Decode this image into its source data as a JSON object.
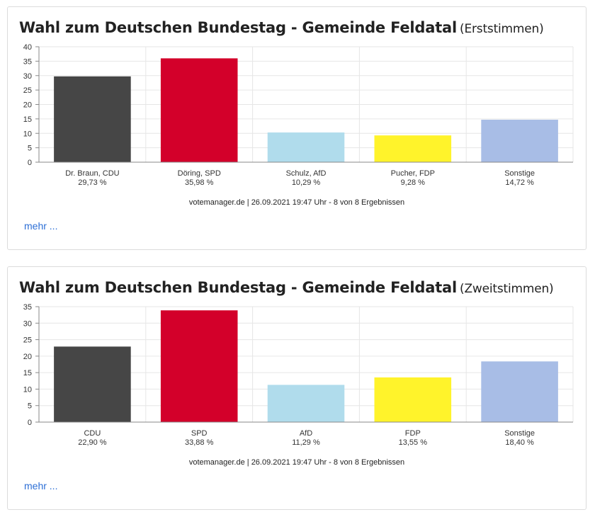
{
  "chart_data": [
    {
      "type": "bar",
      "title": "Wahl zum Deutschen Bundestag - Gemeinde Feldatal",
      "subtitle": "(Erststimmen)",
      "categories": [
        "Dr. Braun, CDU",
        "Döring, SPD",
        "Schulz, AfD",
        "Pucher, FDP",
        "Sonstige"
      ],
      "value_labels": [
        "29,73 %",
        "35,98 %",
        "10,29 %",
        "9,28 %",
        "14,72 %"
      ],
      "values": [
        29.73,
        35.98,
        10.29,
        9.28,
        14.72
      ],
      "colors": [
        "#464646",
        "#d3002a",
        "#b0dcec",
        "#fff32b",
        "#a8bde6"
      ],
      "ylim": [
        0,
        40
      ],
      "yticks": [
        0,
        5,
        10,
        15,
        20,
        25,
        30,
        35,
        40
      ],
      "grid": true,
      "footer": "votemanager.de | 26.09.2021 19:47 Uhr - 8 von 8 Ergebnissen",
      "more_link": "mehr ..."
    },
    {
      "type": "bar",
      "title": "Wahl zum Deutschen Bundestag - Gemeinde Feldatal",
      "subtitle": "(Zweitstimmen)",
      "categories": [
        "CDU",
        "SPD",
        "AfD",
        "FDP",
        "Sonstige"
      ],
      "value_labels": [
        "22,90 %",
        "33,88 %",
        "11,29 %",
        "13,55 %",
        "18,40 %"
      ],
      "values": [
        22.9,
        33.88,
        11.29,
        13.55,
        18.4
      ],
      "colors": [
        "#464646",
        "#d3002a",
        "#b0dcec",
        "#fff32b",
        "#a8bde6"
      ],
      "ylim": [
        0,
        35
      ],
      "yticks": [
        0,
        5,
        10,
        15,
        20,
        25,
        30,
        35
      ],
      "grid": true,
      "footer": "votemanager.de | 26.09.2021 19:47 Uhr - 8 von 8 Ergebnissen",
      "more_link": "mehr ..."
    }
  ]
}
